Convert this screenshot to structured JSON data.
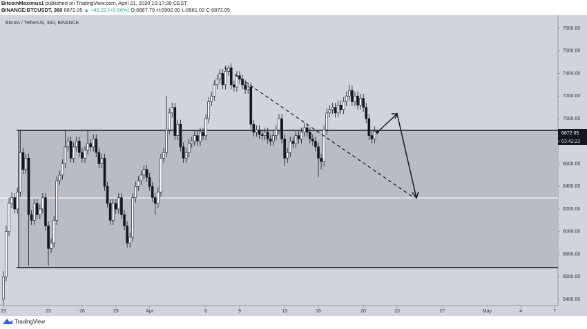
{
  "header": {
    "author": "BitcoinMaximus1",
    "published": "published on TradingView.com, April 21, 2020 10:17:39 CEST",
    "symbol": "BINANCE:BTCUSDT, 360",
    "price": "6872.05",
    "change": "▲ +45.22 (+0.66%)",
    "open": "O:6887.79",
    "high": "H:6902.00",
    "low": "L:6861.02",
    "close": "C:6872.05"
  },
  "footer": {
    "brand": "TradingView"
  },
  "chart_data": {
    "type": "candlestick",
    "title": "Bitcoin / TetherUS, 360, BINANCE",
    "last_price_label": "6872.05",
    "countdown": "03:42:23",
    "up_color": "#ffffff",
    "down_color": "#131722",
    "outline_color": "#131722",
    "xlim": [
      -0.3,
      49.3
    ],
    "ylim": [
      5345,
      7916
    ],
    "xticks": [
      {
        "value": 0,
        "label": "19"
      },
      {
        "value": 4,
        "label": "23"
      },
      {
        "value": 7,
        "label": "26"
      },
      {
        "value": 10,
        "label": "29"
      },
      {
        "value": 13,
        "label": "Apr"
      },
      {
        "value": 18,
        "label": "6"
      },
      {
        "value": 21,
        "label": "9"
      },
      {
        "value": 25,
        "label": "13"
      },
      {
        "value": 28,
        "label": "16"
      },
      {
        "value": 32,
        "label": "20"
      },
      {
        "value": 35,
        "label": "23"
      },
      {
        "value": 39,
        "label": "27"
      },
      {
        "value": 43,
        "label": "May"
      },
      {
        "value": 46,
        "label": "4"
      },
      {
        "value": 49,
        "label": "7"
      }
    ],
    "yticks": [
      {
        "value": 5400,
        "label": "5400.00"
      },
      {
        "value": 5600,
        "label": "5600.00"
      },
      {
        "value": 5800,
        "label": "5800.00"
      },
      {
        "value": 6000,
        "label": "6000.00"
      },
      {
        "value": 6200,
        "label": "6200.00"
      },
      {
        "value": 6400,
        "label": "6400.00"
      },
      {
        "value": 6600,
        "label": "6600.00"
      },
      {
        "value": 6800,
        "label": "6800.00"
      },
      {
        "value": 7000,
        "label": "7000.00"
      },
      {
        "value": 7200,
        "label": "7200.00"
      },
      {
        "value": 7400,
        "label": "7400.00"
      },
      {
        "value": 7600,
        "label": "7600.00"
      },
      {
        "value": 7800,
        "label": "7800.00"
      }
    ],
    "x": [
      0,
      0.25,
      0.5,
      0.75,
      1,
      1.25,
      1.5,
      1.75,
      2,
      2.25,
      2.5,
      2.75,
      3,
      3.25,
      3.5,
      3.75,
      4,
      4.25,
      4.5,
      4.75,
      5,
      5.25,
      5.5,
      5.75,
      6,
      6.25,
      6.5,
      6.75,
      7,
      7.25,
      7.5,
      7.75,
      8,
      8.25,
      8.5,
      8.75,
      9,
      9.25,
      9.5,
      9.75,
      10,
      10.25,
      10.5,
      10.75,
      11,
      11.25,
      11.5,
      11.75,
      12,
      12.25,
      12.5,
      12.75,
      13,
      13.25,
      13.5,
      13.75,
      14,
      14.25,
      14.5,
      14.75,
      15,
      15.25,
      15.5,
      15.75,
      16,
      16.25,
      16.5,
      16.75,
      17,
      17.25,
      17.5,
      17.75,
      18,
      18.25,
      18.5,
      18.75,
      19,
      19.25,
      19.5,
      19.75,
      20,
      20.25,
      20.5,
      20.75,
      21,
      21.25,
      21.5,
      21.75,
      22,
      22.25,
      22.5,
      22.75,
      23,
      23.25,
      23.5,
      23.75,
      24,
      24.25,
      24.5,
      24.75,
      25,
      25.25,
      25.5,
      25.75,
      26,
      26.25,
      26.5,
      26.75,
      27,
      27.25,
      27.5,
      27.75,
      28,
      28.25,
      28.5,
      28.75,
      29,
      29.25,
      29.5,
      29.75,
      30,
      30.25,
      30.5,
      30.75,
      31,
      31.25,
      31.5,
      31.75,
      32,
      32.25,
      32.5,
      32.75,
      33,
      33.25
    ],
    "open": [
      5400,
      5600,
      6000,
      6250,
      6300,
      6200,
      6350,
      6700,
      6550,
      6650,
      6150,
      6100,
      6250,
      6150,
      6200,
      6300,
      6050,
      5850,
      5900,
      6100,
      6450,
      6500,
      6600,
      6750,
      6800,
      6650,
      6750,
      6800,
      6700,
      6650,
      6720,
      6780,
      6750,
      6820,
      6700,
      6600,
      6650,
      6400,
      6250,
      6100,
      6250,
      6200,
      6300,
      6150,
      6050,
      5900,
      5950,
      6300,
      6400,
      6450,
      6500,
      6550,
      6480,
      6400,
      6300,
      6250,
      6350,
      6650,
      6700,
      6900,
      7050,
      7100,
      6850,
      6950,
      6750,
      6650,
      6700,
      6780,
      6800,
      6850,
      6800,
      6880,
      6850,
      7000,
      7150,
      7200,
      7300,
      7350,
      7400,
      7300,
      7420,
      7450,
      7300,
      7280,
      7380,
      7350,
      7300,
      7260,
      7280,
      6950,
      6880,
      6900,
      6860,
      6850,
      6880,
      6820,
      6800,
      6850,
      6900,
      7000,
      6820,
      6650,
      6700,
      6800,
      6780,
      6850,
      6820,
      6880,
      6920,
      6880,
      6820,
      6800,
      6750,
      6650,
      6620,
      6900,
      7050,
      7080,
      7100,
      7050,
      7120,
      7080,
      7150,
      7200,
      7250,
      7150,
      7200,
      7120,
      7180,
      7100,
      7000,
      6850,
      6820,
      6887.79
    ],
    "high": [
      5650,
      6050,
      6300,
      6350,
      6340,
      6390,
      6900,
      6740,
      6690,
      6690,
      6190,
      6290,
      6290,
      6240,
      6340,
      6340,
      6090,
      5940,
      6140,
      6490,
      6540,
      6640,
      6900,
      6840,
      6840,
      6790,
      6840,
      6840,
      6740,
      6760,
      6900,
      6820,
      6860,
      6860,
      6740,
      6690,
      6690,
      6440,
      6290,
      6290,
      6290,
      6340,
      6340,
      6190,
      6090,
      5990,
      6340,
      6440,
      6490,
      6540,
      6590,
      6590,
      6520,
      6440,
      6340,
      6390,
      6690,
      6740,
      7200,
      7090,
      7140,
      7140,
      6990,
      6990,
      6790,
      6740,
      6820,
      6840,
      6890,
      6890,
      6920,
      6920,
      7040,
      7190,
      7240,
      7340,
      7390,
      7440,
      7440,
      7470,
      7470,
      7490,
      7340,
      7420,
      7420,
      7390,
      7340,
      7320,
      7320,
      6990,
      6940,
      6940,
      6900,
      6920,
      6920,
      6860,
      6890,
      6940,
      7040,
      7040,
      6860,
      6740,
      6840,
      6840,
      6890,
      6890,
      6920,
      6960,
      6960,
      6920,
      6860,
      6840,
      6790,
      6690,
      6940,
      7090,
      7120,
      7140,
      7140,
      7160,
      7160,
      7190,
      7240,
      7300,
      7290,
      7240,
      7240,
      7220,
      7220,
      7140,
      7040,
      6890,
      6930,
      6902
    ],
    "low": [
      5350,
      5560,
      5960,
      6210,
      6160,
      6160,
      6310,
      6510,
      6510,
      5700,
      6060,
      6060,
      6110,
      6110,
      6160,
      6010,
      5700,
      5810,
      5860,
      6060,
      6410,
      6460,
      6560,
      6710,
      6610,
      6610,
      6710,
      6660,
      6610,
      6610,
      6680,
      6710,
      6710,
      6660,
      6560,
      6560,
      6360,
      6210,
      6060,
      6060,
      6160,
      6160,
      6110,
      6010,
      5860,
      5860,
      5910,
      6260,
      6360,
      6410,
      6460,
      6440,
      6360,
      6260,
      6150,
      6210,
      6310,
      6610,
      6660,
      6860,
      7010,
      6810,
      6810,
      6710,
      6610,
      6610,
      6660,
      6740,
      6760,
      6760,
      6760,
      6810,
      6810,
      6960,
      7110,
      7160,
      7260,
      7310,
      7260,
      7260,
      7380,
      7260,
      7240,
      7240,
      7310,
      7260,
      7220,
      7220,
      6910,
      6840,
      6840,
      6820,
      6810,
      6810,
      6780,
      6760,
      6760,
      6810,
      6860,
      6780,
      6580,
      6610,
      6660,
      6740,
      6740,
      6780,
      6780,
      6840,
      6840,
      6780,
      6760,
      6710,
      6480,
      6550,
      6580,
      6860,
      7010,
      7040,
      7010,
      7010,
      7040,
      7040,
      7110,
      7160,
      7110,
      7110,
      7080,
      7080,
      7060,
      6960,
      6810,
      6780,
      6780,
      6861.02
    ],
    "close": [
      5600,
      6000,
      6250,
      6300,
      6200,
      6350,
      6700,
      6550,
      6650,
      6150,
      6100,
      6250,
      6150,
      6200,
      6300,
      6050,
      5850,
      5900,
      6100,
      6450,
      6500,
      6600,
      6750,
      6800,
      6650,
      6750,
      6800,
      6700,
      6650,
      6720,
      6780,
      6750,
      6820,
      6700,
      6600,
      6650,
      6400,
      6250,
      6100,
      6250,
      6200,
      6300,
      6150,
      6050,
      5900,
      5950,
      6300,
      6400,
      6450,
      6500,
      6550,
      6480,
      6400,
      6300,
      6250,
      6350,
      6650,
      6700,
      6900,
      7050,
      7100,
      6850,
      6950,
      6750,
      6650,
      6700,
      6780,
      6800,
      6850,
      6800,
      6880,
      6850,
      7000,
      7150,
      7200,
      7300,
      7350,
      7400,
      7300,
      7420,
      7450,
      7300,
      7280,
      7380,
      7350,
      7300,
      7260,
      7280,
      6950,
      6880,
      6900,
      6860,
      6850,
      6880,
      6820,
      6800,
      6850,
      6900,
      7000,
      6820,
      6650,
      6700,
      6800,
      6780,
      6850,
      6820,
      6880,
      6920,
      6880,
      6820,
      6800,
      6750,
      6650,
      6620,
      6900,
      7050,
      7080,
      7100,
      7050,
      7120,
      7080,
      7150,
      7200,
      7250,
      7150,
      7200,
      7120,
      7180,
      7100,
      7000,
      6850,
      6820,
      6887.79,
      6872.05
    ]
  }
}
